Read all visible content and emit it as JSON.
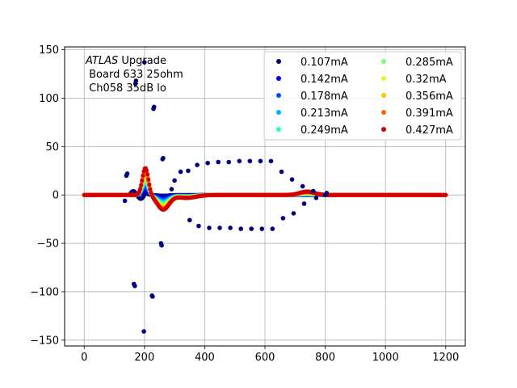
{
  "chart_data": {
    "type": "scatter",
    "annotation": {
      "experiment": "ATLAS",
      "experiment_suffix": " Upgrade",
      "line2": " Board 633 25ohm",
      "line3": " Ch058 35dB lo"
    },
    "xlim": [
      -65,
      1265
    ],
    "ylim": [
      -156,
      153
    ],
    "xticks": [
      0,
      200,
      400,
      600,
      800,
      1000,
      1200
    ],
    "yticks": [
      -150,
      -100,
      -50,
      0,
      50,
      100,
      150
    ],
    "grid": true,
    "legend_placement": "top-right",
    "series": [
      {
        "name": "0.107mA",
        "color": "#00007f",
        "amp": 0.05,
        "extra": true
      },
      {
        "name": "0.142mA",
        "color": "#0000f1",
        "amp": 0.2
      },
      {
        "name": "0.178mA",
        "color": "#004cff",
        "amp": 0.32
      },
      {
        "name": "0.213mA",
        "color": "#00b0ff",
        "amp": 0.44
      },
      {
        "name": "0.249mA",
        "color": "#29ffce",
        "amp": 0.55
      },
      {
        "name": "0.285mA",
        "color": "#7dff7a",
        "amp": 0.65
      },
      {
        "name": "0.32mA",
        "color": "#ceff29",
        "amp": 0.75
      },
      {
        "name": "0.356mA",
        "color": "#ffc400",
        "amp": 0.84
      },
      {
        "name": "0.391mA",
        "color": "#ff6800",
        "amp": 0.92
      },
      {
        "name": "0.427mA",
        "color": "#d40000",
        "amp": 1.0
      }
    ],
    "outlier_points": [
      [
        135,
        -6
      ],
      [
        140,
        20
      ],
      [
        143,
        22
      ],
      [
        165,
        -92
      ],
      [
        168,
        -94
      ],
      [
        170,
        115
      ],
      [
        172,
        118
      ],
      [
        198,
        -141
      ],
      [
        200,
        137
      ],
      [
        225,
        -104
      ],
      [
        227,
        -105
      ],
      [
        230,
        89
      ],
      [
        232,
        91
      ],
      [
        255,
        -50
      ],
      [
        257,
        -52
      ],
      [
        260,
        37
      ],
      [
        262,
        38
      ],
      [
        290,
        6
      ],
      [
        300,
        15
      ],
      [
        320,
        24
      ],
      [
        350,
        -26
      ],
      [
        345,
        25
      ],
      [
        375,
        31
      ],
      [
        380,
        -32
      ],
      [
        410,
        33
      ],
      [
        415,
        -34
      ],
      [
        445,
        34
      ],
      [
        450,
        -34
      ],
      [
        480,
        34
      ],
      [
        485,
        -34
      ],
      [
        515,
        35
      ],
      [
        520,
        -35
      ],
      [
        550,
        35
      ],
      [
        555,
        -35
      ],
      [
        585,
        35
      ],
      [
        590,
        -35
      ],
      [
        620,
        35
      ],
      [
        625,
        -35
      ],
      [
        655,
        24
      ],
      [
        660,
        -24
      ],
      [
        690,
        16
      ],
      [
        695,
        -19
      ],
      [
        725,
        9
      ],
      [
        730,
        -9
      ],
      [
        760,
        4
      ],
      [
        770,
        -3
      ],
      [
        805,
        2
      ],
      [
        800,
        0
      ]
    ]
  }
}
